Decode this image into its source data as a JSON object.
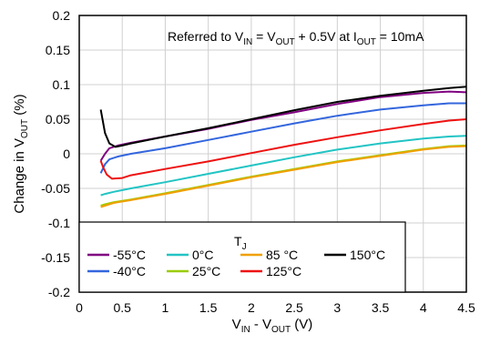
{
  "chart_data": {
    "type": "line",
    "annotation": {
      "prefix": "Referred to V",
      "sub1": "IN",
      "mid1": " = V",
      "sub2": "OUT",
      "mid2": " + 0.5V at I",
      "sub3": "OUT",
      "suffix": " = 10mA"
    },
    "xlabel": {
      "v1": "V",
      "s1": "IN",
      "mid": " - V",
      "s2": "OUT",
      "unit": " (V)"
    },
    "ylabel": {
      "pre": "Change in V",
      "sub": "OUT",
      "unit": " (%)"
    },
    "xlim": [
      0,
      4.5
    ],
    "ylim": [
      -0.2,
      0.2
    ],
    "x_ticks": [
      "0",
      "0.5",
      "1",
      "1.5",
      "2",
      "2.5",
      "3",
      "3.5",
      "4",
      "4.5"
    ],
    "y_ticks": [
      "0.2",
      "0.15",
      "0.1",
      "0.05",
      "0",
      "-0.05",
      "-0.1",
      "-0.15",
      "-0.2"
    ],
    "grid": true,
    "legend": {
      "title": "T",
      "title_sub": "J",
      "placement": "bottom-left"
    },
    "series": [
      {
        "name": "-55°C",
        "color": "#800080",
        "points": [
          [
            0.25,
            -0.01
          ],
          [
            0.3,
            0.0
          ],
          [
            0.35,
            0.008
          ],
          [
            0.45,
            0.012
          ],
          [
            0.6,
            0.016
          ],
          [
            1.0,
            0.025
          ],
          [
            1.5,
            0.036
          ],
          [
            2.0,
            0.049
          ],
          [
            2.5,
            0.06
          ],
          [
            3.0,
            0.072
          ],
          [
            3.5,
            0.082
          ],
          [
            4.0,
            0.088
          ],
          [
            4.3,
            0.09
          ],
          [
            4.5,
            0.089
          ]
        ]
      },
      {
        "name": "-40°C",
        "color": "#3366dd",
        "points": [
          [
            0.25,
            -0.028
          ],
          [
            0.3,
            -0.015
          ],
          [
            0.35,
            -0.008
          ],
          [
            0.45,
            -0.004
          ],
          [
            0.6,
            0.0
          ],
          [
            1.0,
            0.008
          ],
          [
            1.5,
            0.02
          ],
          [
            2.0,
            0.032
          ],
          [
            2.5,
            0.044
          ],
          [
            3.0,
            0.055
          ],
          [
            3.5,
            0.064
          ],
          [
            4.0,
            0.07
          ],
          [
            4.3,
            0.073
          ],
          [
            4.5,
            0.073
          ]
        ]
      },
      {
        "name": "0°C",
        "color": "#22c4c4",
        "points": [
          [
            0.25,
            -0.06
          ],
          [
            0.3,
            -0.058
          ],
          [
            0.4,
            -0.055
          ],
          [
            0.6,
            -0.05
          ],
          [
            1.0,
            -0.041
          ],
          [
            1.5,
            -0.029
          ],
          [
            2.0,
            -0.017
          ],
          [
            2.5,
            -0.005
          ],
          [
            3.0,
            0.006
          ],
          [
            3.5,
            0.015
          ],
          [
            4.0,
            0.022
          ],
          [
            4.3,
            0.025
          ],
          [
            4.5,
            0.026
          ]
        ]
      },
      {
        "name": "25°C",
        "color": "#99cc00",
        "points": [
          [
            0.25,
            -0.075
          ],
          [
            0.3,
            -0.073
          ],
          [
            0.4,
            -0.07
          ],
          [
            0.6,
            -0.066
          ],
          [
            1.0,
            -0.057
          ],
          [
            1.5,
            -0.045
          ],
          [
            2.0,
            -0.033
          ],
          [
            2.5,
            -0.022
          ],
          [
            3.0,
            -0.011
          ],
          [
            3.5,
            -0.002
          ],
          [
            4.0,
            0.007
          ],
          [
            4.3,
            0.011
          ],
          [
            4.5,
            0.012
          ]
        ]
      },
      {
        "name": "85 °C",
        "color": "#f0a000",
        "points": [
          [
            0.25,
            -0.077
          ],
          [
            0.3,
            -0.075
          ],
          [
            0.4,
            -0.071
          ],
          [
            0.6,
            -0.067
          ],
          [
            1.0,
            -0.058
          ],
          [
            1.5,
            -0.046
          ],
          [
            2.0,
            -0.034
          ],
          [
            2.5,
            -0.023
          ],
          [
            3.0,
            -0.012
          ],
          [
            3.5,
            -0.003
          ],
          [
            4.0,
            0.006
          ],
          [
            4.3,
            0.01
          ],
          [
            4.5,
            0.011
          ]
        ]
      },
      {
        "name": "125°C",
        "color": "#ee1111",
        "points": [
          [
            0.25,
            -0.01
          ],
          [
            0.28,
            -0.02
          ],
          [
            0.32,
            -0.03
          ],
          [
            0.38,
            -0.036
          ],
          [
            0.5,
            -0.035
          ],
          [
            0.6,
            -0.031
          ],
          [
            1.0,
            -0.022
          ],
          [
            1.5,
            -0.011
          ],
          [
            2.0,
            0.001
          ],
          [
            2.5,
            0.013
          ],
          [
            3.0,
            0.024
          ],
          [
            3.5,
            0.034
          ],
          [
            4.0,
            0.043
          ],
          [
            4.3,
            0.048
          ],
          [
            4.5,
            0.05
          ]
        ]
      },
      {
        "name": "150°C",
        "color": "#000000",
        "points": [
          [
            0.25,
            0.064
          ],
          [
            0.3,
            0.03
          ],
          [
            0.35,
            0.015
          ],
          [
            0.42,
            0.01
          ],
          [
            0.5,
            0.012
          ],
          [
            0.6,
            0.015
          ],
          [
            1.0,
            0.025
          ],
          [
            1.5,
            0.037
          ],
          [
            2.0,
            0.05
          ],
          [
            2.5,
            0.063
          ],
          [
            3.0,
            0.075
          ],
          [
            3.5,
            0.084
          ],
          [
            4.0,
            0.091
          ],
          [
            4.3,
            0.095
          ],
          [
            4.5,
            0.097
          ]
        ]
      }
    ]
  }
}
